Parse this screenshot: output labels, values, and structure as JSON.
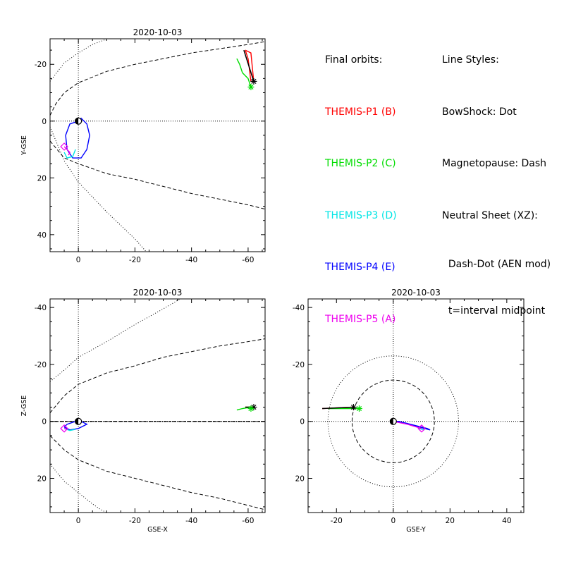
{
  "chart_data": {
    "type": "scatter",
    "legend_placement": "top-right",
    "legend": {
      "title": "Final orbits:",
      "probes": [
        {
          "label": "THEMIS-P1 (B)",
          "color": "#ff0000"
        },
        {
          "label": "THEMIS-P2 (C)",
          "color": "#00dd00"
        },
        {
          "label": "THEMIS-P3 (D)",
          "color": "#00e5e5"
        },
        {
          "label": "THEMIS-P4 (E)",
          "color": "#0000ff"
        },
        {
          "label": "THEMIS-P5 (A)",
          "color": "#ee00ee"
        }
      ]
    },
    "line_styles": {
      "title": "Line Styles:",
      "bowshock": "BowShock: Dot",
      "magnetopause": "Magnetopause: Dash",
      "neutral_sheet": "Neutral Sheet (XZ):",
      "neutral_sheet_detail": "  Dash-Dot (AEN mod)",
      "midpoint_note": "  t=interval midpoint"
    },
    "panels": [
      {
        "id": "xy",
        "title": "2020-10-03",
        "xlabel": "",
        "ylabel": "Y-GSE",
        "xlim": [
          10,
          -66
        ],
        "ylim": [
          -29,
          46
        ],
        "xticks": [
          0,
          -20,
          -40,
          -60
        ],
        "yticks": [
          -20,
          0,
          20,
          40
        ],
        "bowshock": [
          [
            10,
            -14.0
          ],
          [
            5,
            -20.5
          ],
          [
            0,
            -24.0
          ],
          [
            -5,
            -27.0
          ],
          [
            -9,
            -28.5
          ],
          [
            -10,
            -29.0
          ]
        ],
        "bowshock_lower": [
          [
            10,
            2.0
          ],
          [
            5,
            14.0
          ],
          [
            0,
            21.5
          ],
          [
            -10,
            32.0
          ],
          [
            -20,
            41.5
          ],
          [
            -24,
            46.0
          ]
        ],
        "magnetopause": [
          [
            10,
            -2
          ],
          [
            8,
            -6.0
          ],
          [
            5,
            -10.0
          ],
          [
            0,
            -13.5
          ],
          [
            -10,
            -17.5
          ],
          [
            -20,
            -20.0
          ],
          [
            -30,
            -22.0
          ],
          [
            -40,
            -24.0
          ],
          [
            -50,
            -25.5
          ],
          [
            -60,
            -27.0
          ],
          [
            -66,
            -28.0
          ]
        ],
        "magnetopause_lower": [
          [
            10,
            7.0
          ],
          [
            5,
            13.0
          ],
          [
            0,
            15.0
          ],
          [
            -10,
            18.5
          ],
          [
            -20,
            20.5
          ],
          [
            -30,
            23.0
          ],
          [
            -40,
            25.5
          ],
          [
            -50,
            27.5
          ],
          [
            -60,
            29.5
          ],
          [
            -66,
            31.0
          ]
        ],
        "orbits": [
          {
            "probe": "P1",
            "color": "#ff0000",
            "points": [
              [
                -59,
                -25
              ],
              [
                -61,
                -24
              ],
              [
                -62,
                -14
              ],
              [
                -61,
                -14
              ],
              [
                -60,
                -22
              ],
              [
                -59,
                -25
              ]
            ]
          },
          {
            "probe": "P2",
            "color": "#00dd00",
            "points": [
              [
                -56,
                -22
              ],
              [
                -57,
                -20
              ],
              [
                -58,
                -17
              ],
              [
                -60,
                -15
              ],
              [
                -61,
                -12
              ]
            ]
          },
          {
            "probe": "P4",
            "color": "#0000ff",
            "points": [
              [
                0,
                0
              ],
              [
                3,
                1
              ],
              [
                4.5,
                5
              ],
              [
                4,
                10
              ],
              [
                2,
                13
              ],
              [
                -1,
                13
              ],
              [
                -3,
                10
              ],
              [
                -4,
                5
              ],
              [
                -3,
                1
              ],
              [
                -1,
                -1
              ],
              [
                0,
                0
              ]
            ]
          },
          {
            "probe": "P3",
            "color": "#00e5e5",
            "points": [
              [
                5,
                11
              ],
              [
                4,
                13
              ],
              [
                2,
                12.5
              ],
              [
                1,
                10
              ]
            ]
          },
          {
            "probe": "P5",
            "color": "#ee00ee",
            "points": [
              [
                5,
                9
              ],
              [
                4,
                10
              ],
              [
                3,
                11
              ],
              [
                3.5,
                12
              ]
            ]
          },
          {
            "probe": "track",
            "color": "#000000",
            "points": [
              [
                -58.5,
                -25
              ],
              [
                -62,
                -14
              ]
            ]
          }
        ],
        "markers": [
          {
            "x": -62,
            "y": -14,
            "color": "#000000",
            "symbol": "asterisk"
          },
          {
            "x": -61,
            "y": -12,
            "color": "#00dd00",
            "symbol": "asterisk"
          },
          {
            "x": 5,
            "y": 9,
            "color": "#ee00ee",
            "symbol": "square"
          },
          {
            "x": 0,
            "y": 0,
            "color": "#000000",
            "symbol": "earth"
          }
        ]
      },
      {
        "id": "xz",
        "title": "2020-10-03",
        "xlabel": "GSE-X",
        "ylabel": "Z-GSE",
        "xlim": [
          10,
          -66
        ],
        "ylim": [
          -43,
          32
        ],
        "xticks": [
          0,
          -20,
          -40,
          -60
        ],
        "yticks": [
          20,
          0,
          -20,
          -40
        ],
        "bowshock": [
          [
            10,
            15.0
          ],
          [
            5,
            21.0
          ],
          [
            0,
            25.0
          ],
          [
            -5,
            29.0
          ],
          [
            -8,
            31.0
          ],
          [
            -10,
            32.0
          ]
        ],
        "bowshock_lower": [
          [
            10,
            -14.0
          ],
          [
            5,
            -18.0
          ],
          [
            0,
            -22.5
          ],
          [
            -10,
            -28.0
          ],
          [
            -20,
            -34.0
          ],
          [
            -30,
            -39.5
          ],
          [
            -36,
            -43.0
          ]
        ],
        "magnetopause": [
          [
            10,
            5.0
          ],
          [
            8,
            7.0
          ],
          [
            5,
            10.0
          ],
          [
            0,
            13.5
          ],
          [
            -10,
            17.5
          ],
          [
            -20,
            20.0
          ],
          [
            -30,
            22.5
          ],
          [
            -40,
            25.0
          ],
          [
            -50,
            27.0
          ],
          [
            -60,
            29.5
          ],
          [
            -66,
            31.0
          ]
        ],
        "magnetopause_lower": [
          [
            10,
            -3.0
          ],
          [
            5,
            -9.0
          ],
          [
            0,
            -13.0
          ],
          [
            -10,
            -17.0
          ],
          [
            -20,
            -19.5
          ],
          [
            -30,
            -22.5
          ],
          [
            -40,
            -24.5
          ],
          [
            -50,
            -26.5
          ],
          [
            -60,
            -28.0
          ],
          [
            -66,
            -29.0
          ]
        ],
        "neutral_sheet": [
          [
            10,
            0
          ],
          [
            -66,
            0
          ]
        ],
        "orbits": [
          {
            "probe": "P1",
            "color": "#ff0000",
            "points": [
              [
                -59,
                -5
              ],
              [
                -62,
                -5
              ]
            ]
          },
          {
            "probe": "P2",
            "color": "#00dd00",
            "points": [
              [
                -56,
                -4
              ],
              [
                -58,
                -4.5
              ],
              [
                -61,
                -5
              ]
            ]
          },
          {
            "probe": "P4",
            "color": "#0000ff",
            "points": [
              [
                5,
                2
              ],
              [
                3,
                3
              ],
              [
                0,
                2.5
              ],
              [
                -3,
                1
              ],
              [
                -1,
                0
              ],
              [
                1,
                0
              ],
              [
                4,
                1
              ],
              [
                5,
                2
              ]
            ]
          },
          {
            "probe": "P3",
            "color": "#00e5e5",
            "points": [
              [
                5,
                2.5
              ],
              [
                3,
                3.2
              ],
              [
                1,
                2.8
              ]
            ]
          },
          {
            "probe": "P5",
            "color": "#ee00ee",
            "points": [
              [
                5,
                2.5
              ],
              [
                4,
                2.8
              ]
            ]
          },
          {
            "probe": "track",
            "color": "#000000",
            "points": [
              [
                -59,
                -5
              ],
              [
                -62,
                -5
              ]
            ]
          }
        ],
        "markers": [
          {
            "x": -62,
            "y": -5,
            "color": "#000000",
            "symbol": "asterisk"
          },
          {
            "x": -61,
            "y": -4.5,
            "color": "#00dd00",
            "symbol": "asterisk"
          },
          {
            "x": 5,
            "y": 2.5,
            "color": "#ee00ee",
            "symbol": "square"
          },
          {
            "x": 0,
            "y": 0,
            "color": "#000000",
            "symbol": "earth"
          }
        ]
      },
      {
        "id": "yz",
        "title": "2020-10-03",
        "xlabel": "GSE-Y",
        "ylabel": "",
        "xlim": [
          -30,
          46
        ],
        "ylim": [
          -43,
          32
        ],
        "xticks": [
          -20,
          0,
          20,
          40
        ],
        "yticks": [
          20,
          0,
          -20,
          -40
        ],
        "circles": [
          {
            "r": 14.5,
            "style": "dash"
          },
          {
            "r": 23.0,
            "style": "dot"
          }
        ],
        "orbits": [
          {
            "probe": "P4",
            "color": "#0000ff",
            "points": [
              [
                0,
                0
              ],
              [
                4,
                0.5
              ],
              [
                8,
                1.5
              ],
              [
                12,
                2.5
              ],
              [
                13,
                3
              ],
              [
                11,
                2.5
              ],
              [
                6,
                1
              ],
              [
                2,
                0
              ],
              [
                0,
                0
              ]
            ]
          },
          {
            "probe": "P3",
            "color": "#00e5e5",
            "points": [
              [
                9,
                2.5
              ],
              [
                11,
                3
              ]
            ]
          },
          {
            "probe": "P5",
            "color": "#ee00ee",
            "points": [
              [
                0,
                0
              ],
              [
                5,
                1
              ],
              [
                10,
                2.5
              ]
            ]
          },
          {
            "probe": "P1",
            "color": "#ff0000",
            "points": [
              [
                -25,
                -4.5
              ],
              [
                -14,
                -5
              ]
            ]
          },
          {
            "probe": "P2",
            "color": "#00dd00",
            "points": [
              [
                -23,
                -4.5
              ],
              [
                -12,
                -4.5
              ]
            ]
          },
          {
            "probe": "track",
            "color": "#000000",
            "points": [
              [
                -25,
                -4.5
              ],
              [
                -14,
                -5
              ]
            ]
          }
        ],
        "markers": [
          {
            "x": -14,
            "y": -5,
            "color": "#000000",
            "symbol": "asterisk"
          },
          {
            "x": -12,
            "y": -4.5,
            "color": "#00dd00",
            "symbol": "asterisk"
          },
          {
            "x": 10,
            "y": 2.5,
            "color": "#ee00ee",
            "symbol": "square"
          },
          {
            "x": 0,
            "y": 0,
            "color": "#000000",
            "symbol": "earth"
          }
        ]
      }
    ]
  }
}
